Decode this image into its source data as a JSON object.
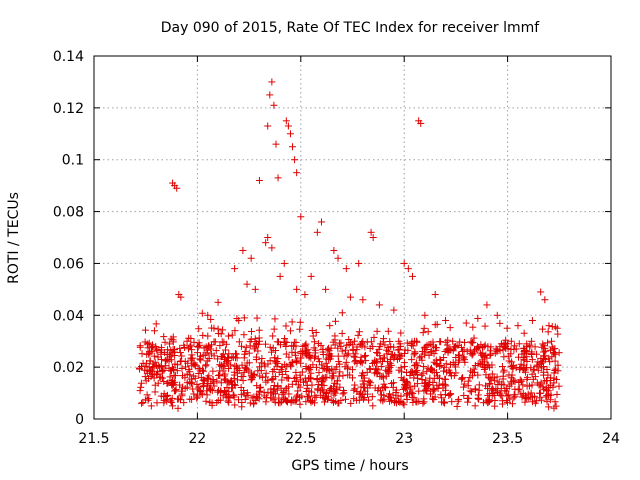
{
  "chart_data": {
    "type": "scatter",
    "title": "Day 090 of 2015, Rate Of TEC Index for receiver lmmf",
    "xlabel": "GPS time / hours",
    "ylabel": "ROTI / TECUs",
    "xlim": [
      21.5,
      24
    ],
    "ylim": [
      0,
      0.14
    ],
    "xticks": [
      21.5,
      22,
      22.5,
      23,
      23.5,
      24
    ],
    "xtick_labels": [
      "21.5",
      "22",
      "22.5",
      "23",
      "23.5",
      "24"
    ],
    "yticks": [
      0,
      0.02,
      0.04,
      0.06,
      0.08,
      0.1,
      0.12,
      0.14
    ],
    "ytick_labels": [
      "0",
      "0.02",
      "0.04",
      "0.06",
      "0.08",
      "0.1",
      "0.12",
      "0.14"
    ],
    "grid": true,
    "marker": "+",
    "color": "#e00000",
    "series": [
      {
        "name": "ROTI",
        "x": [
          21.88,
          21.89,
          21.9,
          22.3,
          22.34,
          22.35,
          22.36,
          22.37,
          22.38,
          22.39,
          22.43,
          22.44,
          22.45,
          22.46,
          22.47,
          22.48,
          23.07,
          23.08,
          21.91,
          21.92,
          22.05,
          22.1,
          22.18,
          22.22,
          22.26,
          22.33,
          22.34,
          22.36,
          22.42,
          22.5,
          22.55,
          22.58,
          22.6,
          22.66,
          22.68,
          22.72,
          22.78,
          22.84,
          22.85,
          23.0,
          23.02,
          23.04,
          23.15,
          23.4,
          23.66,
          23.68,
          22.24,
          22.28,
          22.4,
          22.48,
          22.52,
          22.62,
          22.74,
          22.8,
          22.88,
          22.95,
          23.1,
          23.2,
          23.3,
          23.45,
          23.55,
          23.62,
          23.7,
          23.74,
          21.95,
          22.0,
          22.08,
          22.15,
          22.2,
          22.3,
          22.45,
          22.56,
          22.64,
          22.7,
          22.76,
          22.9,
          22.98,
          23.05,
          23.25,
          23.35,
          23.5,
          23.58,
          23.64,
          23.72
        ],
        "y": [
          0.091,
          0.09,
          0.089,
          0.092,
          0.113,
          0.125,
          0.13,
          0.121,
          0.106,
          0.093,
          0.115,
          0.113,
          0.11,
          0.105,
          0.1,
          0.095,
          0.115,
          0.114,
          0.048,
          0.047,
          0.04,
          0.045,
          0.058,
          0.065,
          0.062,
          0.068,
          0.07,
          0.066,
          0.06,
          0.078,
          0.055,
          0.072,
          0.076,
          0.065,
          0.062,
          0.058,
          0.06,
          0.072,
          0.07,
          0.06,
          0.058,
          0.055,
          0.048,
          0.044,
          0.049,
          0.046,
          0.052,
          0.05,
          0.055,
          0.05,
          0.048,
          0.05,
          0.047,
          0.046,
          0.044,
          0.042,
          0.04,
          0.038,
          0.037,
          0.04,
          0.036,
          0.038,
          0.036,
          0.035,
          0.03,
          0.028,
          0.035,
          0.032,
          0.038,
          0.03,
          0.034,
          0.032,
          0.036,
          0.033,
          0.03,
          0.031,
          0.029,
          0.03,
          0.028,
          0.027,
          0.029,
          0.026,
          0.025,
          0.027
        ]
      }
    ],
    "note": "Dense background cloud of ROTI values between ~0.005 and ~0.03 TECU spanning 21.7–23.75 h"
  }
}
